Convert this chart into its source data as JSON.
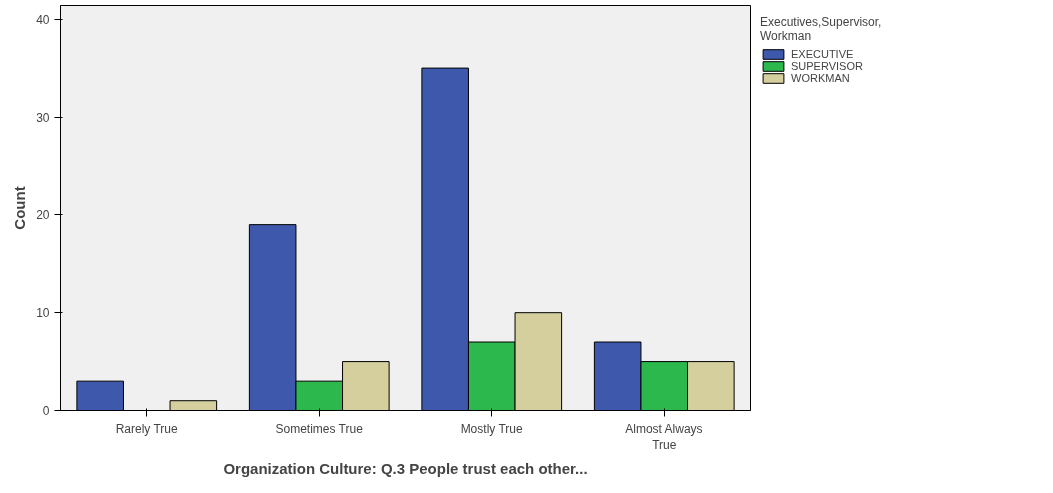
{
  "chart_data": {
    "type": "bar",
    "xlabel": "Organization Culture: Q.3 People trust each other...",
    "ylabel": "Count",
    "legend_title": "Executives,Supervisor, Workman",
    "categories": [
      "Rarely True",
      "Sometimes True",
      "Mostly True",
      "Almost Always True"
    ],
    "series": [
      {
        "name": "EXECUTIVE",
        "color": "#3e58ac",
        "values": [
          3,
          19,
          35,
          7
        ]
      },
      {
        "name": "SUPERVISOR",
        "color": "#2db84d",
        "values": [
          null,
          3,
          7,
          5
        ]
      },
      {
        "name": "WORKMAN",
        "color": "#d4cf9c",
        "values": [
          1,
          5,
          10,
          5
        ]
      }
    ],
    "ylim": [
      0,
      41.4
    ],
    "yticks": [
      0,
      10,
      20,
      30,
      40
    ],
    "grid": false,
    "legend": "top right"
  }
}
